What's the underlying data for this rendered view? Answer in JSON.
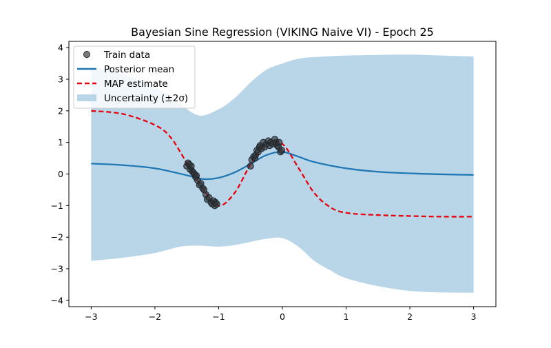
{
  "chart_data": {
    "type": "line",
    "title": "Bayesian Sine Regression (VIKING Naive VI) - Epoch 25",
    "xlabel": "",
    "ylabel": "",
    "xlim": [
      -3.35,
      3.35
    ],
    "ylim": [
      -4.2,
      4.2
    ],
    "xticks": [
      -3,
      -2,
      -1,
      0,
      1,
      2,
      3
    ],
    "yticks": [
      -4,
      -3,
      -2,
      -1,
      0,
      1,
      2,
      3,
      4
    ],
    "grid": false,
    "legend_position": "top-left",
    "legend": {
      "train": "Train data",
      "posterior": "Posterior mean",
      "map": "MAP estimate",
      "uncertainty": "Uncertainty (±2σ)"
    },
    "colors": {
      "train": "#333333",
      "train_edge": "#1a2630",
      "posterior": "#1f77b4",
      "map": "#e8000b",
      "band": "#b9d5e8"
    },
    "posterior_mean": {
      "x": [
        -3.0,
        -2.5,
        -2.0,
        -1.5,
        -1.25,
        -1.0,
        -0.75,
        -0.5,
        -0.25,
        0.0,
        0.25,
        0.5,
        1.0,
        1.5,
        2.0,
        2.5,
        3.0
      ],
      "y": [
        0.33,
        0.28,
        0.18,
        -0.04,
        -0.16,
        -0.12,
        0.05,
        0.32,
        0.6,
        0.7,
        0.55,
        0.38,
        0.18,
        0.07,
        0.02,
        -0.01,
        -0.03
      ]
    },
    "map_estimate": {
      "x": [
        -3.0,
        -2.5,
        -2.0,
        -1.75,
        -1.5,
        -1.25,
        -1.0,
        -0.75,
        -0.5,
        -0.25,
        0.0,
        0.25,
        0.5,
        0.75,
        1.0,
        1.5,
        2.0,
        2.5,
        3.0
      ],
      "y": [
        2.0,
        1.9,
        1.55,
        1.15,
        0.35,
        -0.45,
        -1.0,
        -0.6,
        0.3,
        0.95,
        0.95,
        0.2,
        -0.6,
        -1.05,
        -1.23,
        -1.3,
        -1.33,
        -1.35,
        -1.35
      ]
    },
    "uncertainty_band": {
      "x": [
        -3.0,
        -2.5,
        -2.0,
        -1.6,
        -1.3,
        -1.0,
        -0.75,
        -0.5,
        -0.25,
        0.0,
        0.25,
        0.5,
        0.75,
        1.0,
        1.5,
        2.0,
        2.5,
        3.0
      ],
      "upper": [
        3.4,
        3.15,
        2.75,
        2.2,
        1.85,
        2.05,
        2.4,
        2.9,
        3.3,
        3.5,
        3.65,
        3.7,
        3.73,
        3.75,
        3.77,
        3.78,
        3.75,
        3.72
      ],
      "lower": [
        -2.75,
        -2.65,
        -2.5,
        -2.3,
        -2.27,
        -2.3,
        -2.25,
        -2.15,
        -2.05,
        -2.03,
        -2.3,
        -2.75,
        -3.05,
        -3.3,
        -3.55,
        -3.7,
        -3.75,
        -3.76
      ]
    },
    "train_data": {
      "x": [
        -1.5,
        -1.48,
        -1.46,
        -1.45,
        -1.43,
        -1.42,
        -1.4,
        -1.38,
        -1.36,
        -1.35,
        -1.33,
        -1.3,
        -1.28,
        -1.25,
        -1.23,
        -1.2,
        -1.18,
        -1.15,
        -1.12,
        -1.1,
        -1.08,
        -1.06,
        -1.05,
        -1.03,
        -0.5,
        -0.48,
        -0.45,
        -0.43,
        -0.42,
        -0.4,
        -0.38,
        -0.36,
        -0.35,
        -0.33,
        -0.3,
        -0.28,
        -0.25,
        -0.22,
        -0.2,
        -0.18,
        -0.15,
        -0.12,
        -0.1,
        -0.08,
        -0.06,
        -0.05,
        -0.03,
        -0.01
      ],
      "y": [
        0.25,
        0.35,
        0.3,
        0.15,
        0.25,
        0.1,
        0.05,
        0.0,
        -0.1,
        -0.05,
        -0.2,
        -0.35,
        -0.3,
        -0.45,
        -0.5,
        -0.65,
        -0.8,
        -0.75,
        -0.9,
        -0.95,
        -0.85,
        -1.0,
        -0.9,
        -0.95,
        0.25,
        0.45,
        0.55,
        0.5,
        0.6,
        0.75,
        0.7,
        0.85,
        0.9,
        0.8,
        1.0,
        0.85,
        0.95,
        1.05,
        0.9,
        1.0,
        0.95,
        1.1,
        1.0,
        0.9,
        0.85,
        1.0,
        0.7,
        0.75
      ]
    }
  }
}
